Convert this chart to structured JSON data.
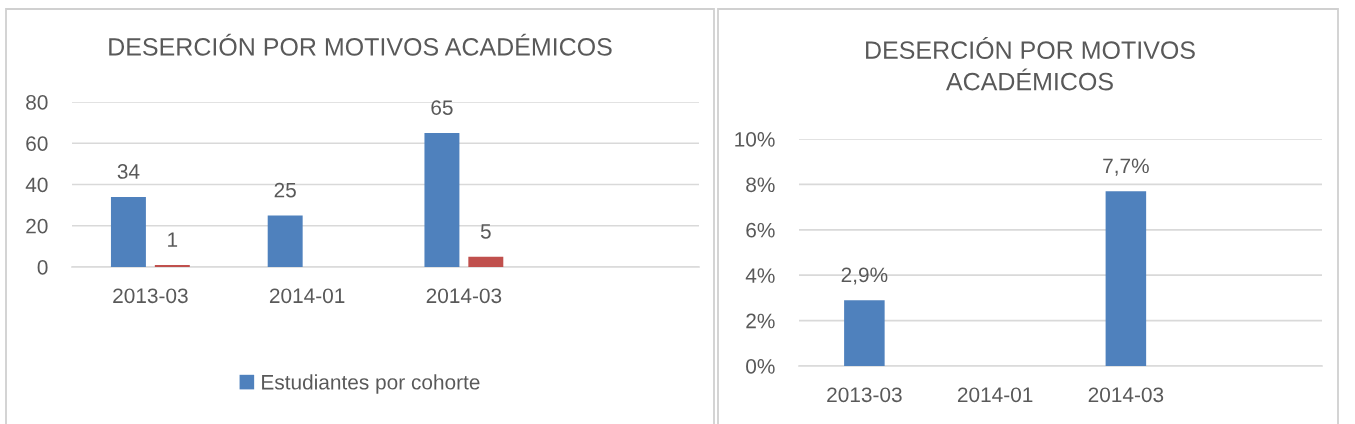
{
  "chart_data": [
    {
      "type": "bar",
      "title": "DESERCIÓN POR MOTIVOS ACADÉMICOS",
      "categories": [
        "2013-03",
        "2014-01",
        "2014-03",
        null
      ],
      "series": [
        {
          "name": "Estudiantes por cohorte",
          "color": "#4f81bd",
          "values": [
            34,
            25,
            65,
            null
          ]
        },
        {
          "color": "#c0504d",
          "values": [
            1,
            null,
            5,
            null
          ]
        }
      ],
      "ylim": [
        0,
        80
      ],
      "yticks": [
        0,
        20,
        40,
        60,
        80
      ],
      "grid": "y",
      "legend": "bottom",
      "data_labels": true
    },
    {
      "type": "bar",
      "title": "DESERCIÓN POR MOTIVOS ACADÉMICOS",
      "categories": [
        "2013-03",
        "2014-01",
        "2014-03",
        null
      ],
      "values": [
        2.9,
        null,
        7.7,
        null
      ],
      "color": "#4f81bd",
      "value_labels": [
        "2,9%",
        null,
        "7,7%",
        null
      ],
      "ylim": [
        0,
        10
      ],
      "yticks": [
        {
          "value": 0,
          "label": "0%"
        },
        {
          "value": 2,
          "label": "2%"
        },
        {
          "value": 4,
          "label": "4%"
        },
        {
          "value": 6,
          "label": "6%"
        },
        {
          "value": 8,
          "label": "8%"
        },
        {
          "value": 10,
          "label": "10%"
        }
      ],
      "grid": "y"
    }
  ]
}
